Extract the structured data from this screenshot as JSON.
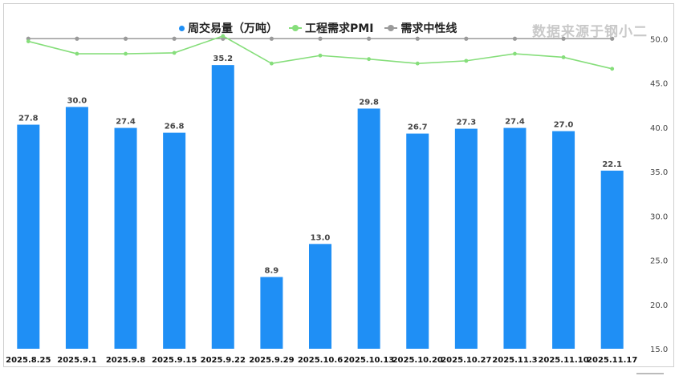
{
  "legend": {
    "volume": "周交易量（万吨）",
    "pmi": "工程需求PMI",
    "neutral": "需求中性线"
  },
  "brand": "数据来源于钢小二",
  "colors": {
    "bar": "#1f8ff5",
    "pmi": "#86de7b",
    "neutral": "#9a9a9a"
  },
  "chart_data": {
    "type": "bar",
    "categories": [
      "2025.8.25",
      "2025.9.1",
      "2025.9.8",
      "2025.9.15",
      "2025.9.22",
      "2025.9.29",
      "2025.10.6",
      "2025.10.13",
      "2025.10.20",
      "2025.10.27",
      "2025.11.3",
      "2025.11.10",
      "2025.11.17"
    ],
    "series": [
      {
        "name": "周交易量（万吨）",
        "type": "bar",
        "values": [
          27.8,
          30.0,
          27.4,
          26.8,
          35.2,
          8.9,
          13.0,
          29.8,
          26.7,
          27.3,
          27.4,
          27.0,
          22.1
        ],
        "labels": [
          "27.8",
          "30.0",
          "27.4",
          "26.8",
          "35.2",
          "8.9",
          "13.0",
          "29.8",
          "26.7",
          "27.3",
          "27.4",
          "27.0",
          "22.1"
        ]
      },
      {
        "name": "工程需求PMI",
        "type": "line",
        "axis": "right",
        "values": [
          49.7,
          48.3,
          48.3,
          48.4,
          50.3,
          47.2,
          48.1,
          47.7,
          47.2,
          47.5,
          48.3,
          47.9,
          46.6
        ]
      },
      {
        "name": "需求中性线",
        "type": "line",
        "axis": "right",
        "values": [
          50,
          50,
          50,
          50,
          50,
          50,
          50,
          50,
          50,
          50,
          50,
          50,
          50
        ]
      }
    ],
    "y_right": {
      "ticks": [
        "15.0",
        "20.0",
        "25.0",
        "30.0",
        "35.0",
        "40.0",
        "45.0",
        "50.0"
      ],
      "range": [
        15,
        50
      ]
    },
    "y_left_range": [
      0,
      38
    ]
  }
}
